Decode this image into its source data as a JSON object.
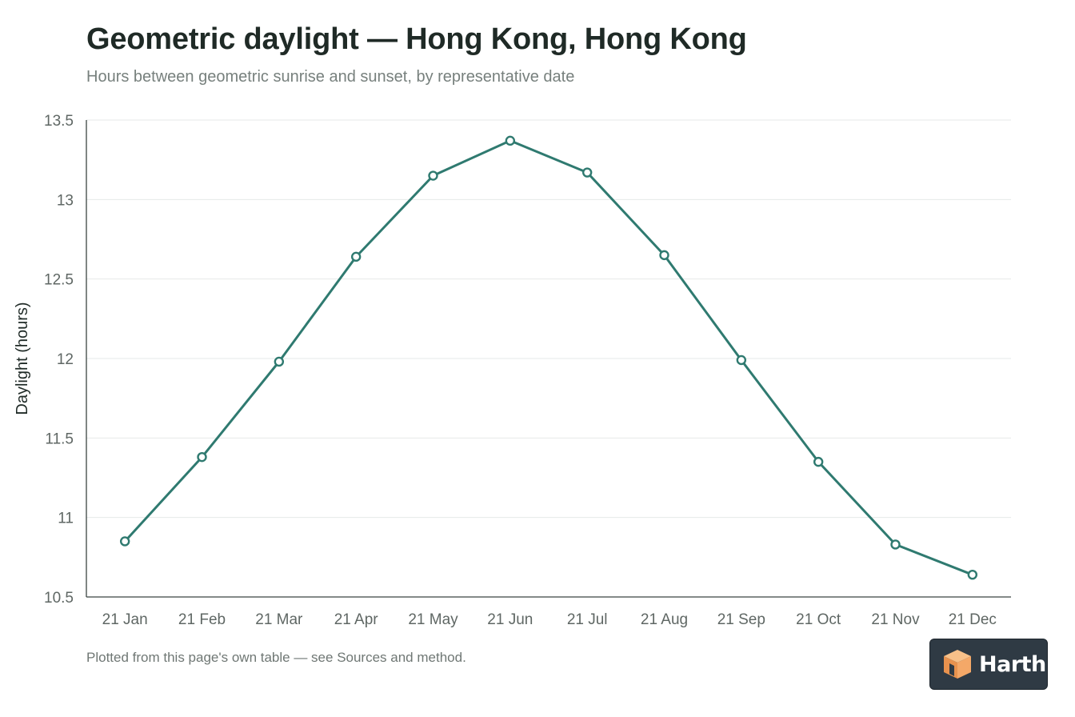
{
  "chart_data": {
    "type": "line",
    "title": "Geometric daylight — Hong Kong, Hong Kong",
    "subtitle": "Hours between geometric sunrise and sunset, by representative date",
    "xlabel": "",
    "ylabel": "Daylight (hours)",
    "categories": [
      "21 Jan",
      "21 Feb",
      "21 Mar",
      "21 Apr",
      "21 May",
      "21 Jun",
      "21 Jul",
      "21 Aug",
      "21 Sep",
      "21 Oct",
      "21 Nov",
      "21 Dec"
    ],
    "series": [
      {
        "values": [
          10.85,
          11.38,
          11.98,
          12.64,
          13.15,
          13.37,
          13.17,
          12.65,
          11.99,
          11.35,
          10.83,
          10.64
        ],
        "color": "#2f7a70"
      }
    ],
    "ylim": [
      10.5,
      13.5
    ],
    "yticks": [
      "10.5",
      "11",
      "11.5",
      "12",
      "12.5",
      "13",
      "13.5"
    ],
    "grid": true,
    "legend": "none",
    "footnote": "Plotted from this page's own table — see Sources and method."
  },
  "brand": {
    "name": "Harth",
    "icon": "cube-logo-icon",
    "badge_color": "#2f3a44",
    "accent": "#f0a868"
  }
}
